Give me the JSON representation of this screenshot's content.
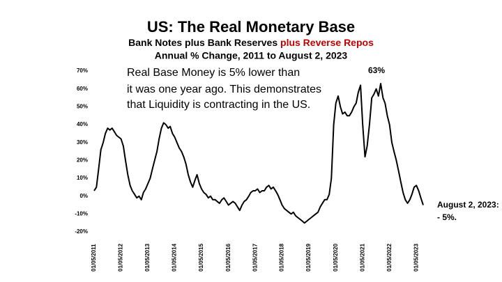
{
  "chart_data": {
    "type": "line",
    "title": "US: The Real Monetary Base",
    "subtitle": "Bank Notes plus Bank Reserves ",
    "subtitle_highlight": "plus Reverse Repos",
    "subtitle_highlight_color": "#c00000",
    "subtitle2": "Annual % Change, 2011 to August 2, 2023",
    "annotation_lines": [
      "Real Base Money is 5% lower than",
      "it was one year ago.  This demonstrates",
      "that Liquidity is contracting in the US."
    ],
    "peak_label": "63%",
    "end_label_lines": [
      "August 2, 2023:",
      "- 5%."
    ],
    "x": [
      "2011-05",
      "2011-06",
      "2011-07",
      "2011-08",
      "2011-09",
      "2011-10",
      "2011-11",
      "2011-12",
      "2012-01",
      "2012-02",
      "2012-03",
      "2012-04",
      "2012-05",
      "2012-06",
      "2012-07",
      "2012-08",
      "2012-09",
      "2012-10",
      "2012-11",
      "2012-12",
      "2013-01",
      "2013-02",
      "2013-03",
      "2013-04",
      "2013-05",
      "2013-06",
      "2013-07",
      "2013-08",
      "2013-09",
      "2013-10",
      "2013-11",
      "2013-12",
      "2014-01",
      "2014-02",
      "2014-03",
      "2014-04",
      "2014-05",
      "2014-06",
      "2014-07",
      "2014-08",
      "2014-09",
      "2014-10",
      "2014-11",
      "2014-12",
      "2015-01",
      "2015-02",
      "2015-03",
      "2015-04",
      "2015-05",
      "2015-06",
      "2015-07",
      "2015-08",
      "2015-09",
      "2015-10",
      "2015-11",
      "2015-12",
      "2016-01",
      "2016-02",
      "2016-03",
      "2016-04",
      "2016-05",
      "2016-06",
      "2016-07",
      "2016-08",
      "2016-09",
      "2016-10",
      "2016-11",
      "2016-12",
      "2017-01",
      "2017-02",
      "2017-03",
      "2017-04",
      "2017-05",
      "2017-06",
      "2017-07",
      "2017-08",
      "2017-09",
      "2017-10",
      "2017-11",
      "2017-12",
      "2018-01",
      "2018-02",
      "2018-03",
      "2018-04",
      "2018-05",
      "2018-06",
      "2018-07",
      "2018-08",
      "2018-09",
      "2018-10",
      "2018-11",
      "2018-12",
      "2019-01",
      "2019-02",
      "2019-03",
      "2019-04",
      "2019-05",
      "2019-06",
      "2019-07",
      "2019-08",
      "2019-09",
      "2019-10",
      "2019-11",
      "2019-12",
      "2020-01",
      "2020-02",
      "2020-03",
      "2020-04",
      "2020-05",
      "2020-06",
      "2020-07",
      "2020-08",
      "2020-09",
      "2020-10",
      "2020-11",
      "2020-12",
      "2021-01",
      "2021-02",
      "2021-03",
      "2021-04",
      "2021-05",
      "2021-06",
      "2021-07",
      "2021-08",
      "2021-09",
      "2021-10",
      "2021-11",
      "2021-12",
      "2022-01",
      "2022-02",
      "2022-03",
      "2022-04",
      "2022-05",
      "2022-06",
      "2022-07",
      "2022-08",
      "2022-09",
      "2022-10",
      "2022-11",
      "2022-12",
      "2023-01",
      "2023-02",
      "2023-03",
      "2023-04",
      "2023-05",
      "2023-06",
      "2023-07",
      "2023-08-02"
    ],
    "series": [
      {
        "name": "Real Monetary Base",
        "color": "#000000",
        "values": [
          3,
          5,
          15,
          26,
          30,
          35,
          38,
          37,
          38,
          36,
          34,
          33,
          32,
          28,
          20,
          12,
          6,
          3,
          1,
          -1,
          0,
          -2,
          2,
          4,
          7,
          10,
          15,
          20,
          25,
          32,
          38,
          41,
          40,
          38,
          39,
          35,
          33,
          30,
          27,
          25,
          22,
          18,
          12,
          8,
          5,
          9,
          12,
          7,
          4,
          2,
          1,
          -1,
          0,
          -2,
          -2,
          -3,
          -4,
          -2,
          -1,
          -3,
          -5,
          -4,
          -3,
          -4,
          -6,
          -8,
          -5,
          -3,
          -2,
          0,
          2,
          3,
          3,
          4,
          2,
          3,
          3,
          5,
          6,
          4,
          5,
          3,
          1,
          -2,
          -5,
          -7,
          -8,
          -9,
          -10,
          -9,
          -11,
          -12,
          -13,
          -14,
          -15,
          -14,
          -13,
          -12,
          -11,
          -10,
          -9,
          -6,
          -4,
          -2,
          -2,
          1,
          10,
          40,
          52,
          56,
          50,
          46,
          47,
          45,
          45,
          47,
          50,
          52,
          58,
          62,
          40,
          22,
          28,
          40,
          55,
          57,
          60,
          56,
          63,
          55,
          52,
          45,
          40,
          30,
          25,
          20,
          14,
          8,
          2,
          -2,
          -4,
          -2,
          1,
          5,
          6,
          3,
          -1,
          -5
        ]
      }
    ],
    "xlim": [
      "2011-05",
      "2023-08-02"
    ],
    "xticks": [
      {
        "value": "2011-05",
        "label": "01/05/2011"
      },
      {
        "value": "2012-05",
        "label": "01/05/2012"
      },
      {
        "value": "2013-05",
        "label": "01/05/2013"
      },
      {
        "value": "2014-05",
        "label": "01/05/2014"
      },
      {
        "value": "2015-05",
        "label": "01/05/2015"
      },
      {
        "value": "2016-05",
        "label": "01/05/2016"
      },
      {
        "value": "2017-05",
        "label": "01/05/2017"
      },
      {
        "value": "2018-05",
        "label": "01/05/2018"
      },
      {
        "value": "2019-05",
        "label": "01/05/2019"
      },
      {
        "value": "2020-05",
        "label": "01/05/2020"
      },
      {
        "value": "2021-05",
        "label": "01/05/2021"
      },
      {
        "value": "2022-05",
        "label": "01/05/2022"
      },
      {
        "value": "2023-05",
        "label": "01/05/2023"
      }
    ],
    "ylim": [
      -20,
      70
    ],
    "yticks": [
      {
        "value": 70,
        "label": "70%"
      },
      {
        "value": 60,
        "label": "60%"
      },
      {
        "value": 50,
        "label": "50%"
      },
      {
        "value": 40,
        "label": "40%"
      },
      {
        "value": 30,
        "label": "30%"
      },
      {
        "value": 20,
        "label": "20%"
      },
      {
        "value": 10,
        "label": "10%"
      },
      {
        "value": 0,
        "label": "0%"
      },
      {
        "value": -10,
        "label": "-10%"
      },
      {
        "value": -20,
        "label": "-20%"
      }
    ],
    "grid": false
  }
}
